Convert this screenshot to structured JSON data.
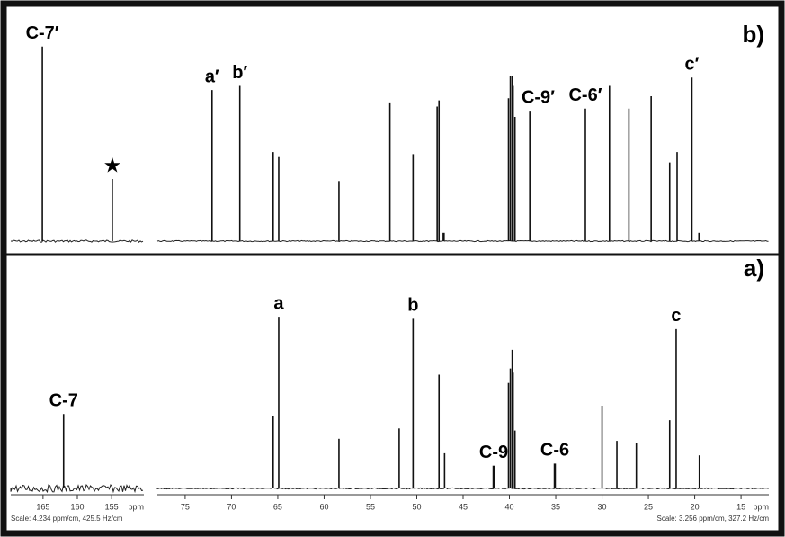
{
  "chart_data": {
    "type": "spectrum",
    "segments": [
      {
        "xlim": [
          169.7,
          150.3
        ],
        "xticks": [
          165,
          160,
          155
        ],
        "xlabel": "ppm",
        "scale_note": "Scale: 4.234 ppm/cm, 425.5 Hz/cm"
      },
      {
        "xlim": [
          78,
          12
        ],
        "xticks": [
          75,
          70,
          65,
          60,
          55,
          50,
          45,
          40,
          35,
          30,
          25,
          20,
          15
        ],
        "xlabel": "ppm",
        "scale_note": "Scale: 3.256 ppm/cm, 327.2 Hz/cm"
      }
    ],
    "panels": [
      {
        "label": "b)",
        "ylim": [
          0,
          100
        ],
        "peaks": {
          "x": [
            165.1,
            154.9,
            72.1,
            69.1,
            65.5,
            64.9,
            58.4,
            52.9,
            50.4,
            47.8,
            47.6,
            47.1,
            40.1,
            39.9,
            39.7,
            39.6,
            39.4,
            37.8,
            31.8,
            29.2,
            27.1,
            24.7,
            22.7,
            21.9,
            20.3,
            19.5
          ],
          "y": [
            94,
            30,
            73,
            75,
            43,
            41,
            29,
            67,
            42,
            65,
            68,
            4,
            69,
            80,
            80,
            75,
            60,
            63,
            64,
            75,
            64,
            70,
            38,
            43,
            79,
            4
          ]
        },
        "annotations": [
          {
            "text": "C-7′",
            "x": 165.1
          },
          {
            "text": "★",
            "x": 154.9
          },
          {
            "text": "a′",
            "x": 72.1
          },
          {
            "text": "b′",
            "x": 69.1
          },
          {
            "text": "C-9′",
            "x": 36.9
          },
          {
            "text": "C-6′",
            "x": 31.8
          },
          {
            "text": "c′",
            "x": 20.3
          }
        ]
      },
      {
        "label": "a)",
        "ylim": [
          0,
          100
        ],
        "peaks": {
          "x": [
            162.0,
            65.5,
            64.9,
            58.4,
            51.9,
            50.4,
            47.6,
            47.0,
            41.7,
            40.1,
            39.9,
            39.7,
            39.6,
            39.4,
            35.1,
            30.0,
            28.4,
            26.3,
            22.7,
            22.0,
            19.5
          ],
          "y": [
            36,
            35,
            83,
            24,
            29,
            82,
            55,
            17,
            11,
            51,
            58,
            67,
            56,
            28,
            12,
            40,
            23,
            22,
            33,
            77,
            16
          ]
        },
        "annotations": [
          {
            "text": "C-7",
            "x": 162.0
          },
          {
            "text": "a",
            "x": 64.9
          },
          {
            "text": "b",
            "x": 50.4
          },
          {
            "text": "C-9",
            "x": 41.7
          },
          {
            "text": "C-6",
            "x": 35.1
          },
          {
            "text": "c",
            "x": 22.0
          }
        ]
      }
    ]
  }
}
